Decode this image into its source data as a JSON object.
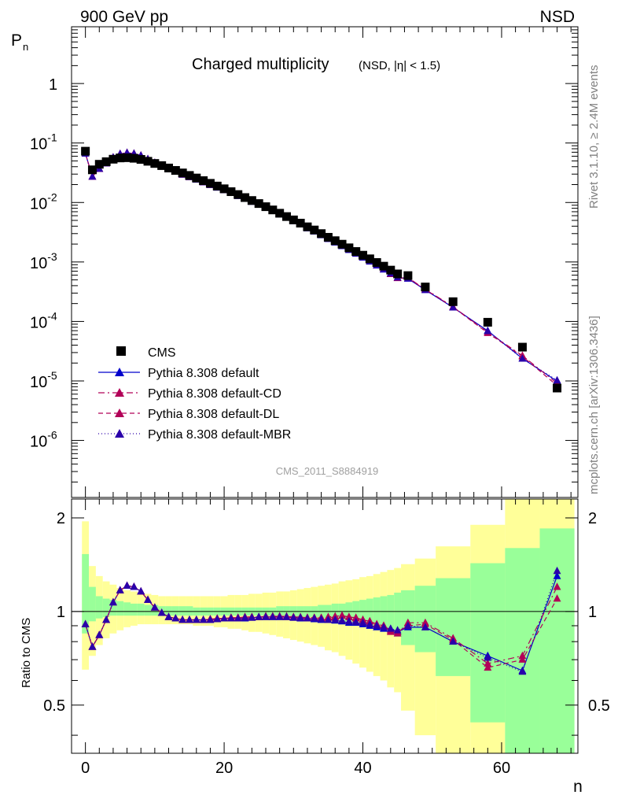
{
  "header": {
    "left": "900 GeV pp",
    "right": "NSD",
    "y_label": "P",
    "y_label_sub": "n",
    "x_label": "n",
    "ratio_label": "Ratio to CMS",
    "side_label_top": "Rivet 3.1.10, ≥ 2.4M events",
    "side_label_bottom": "mcplots.cern.ch [arXiv:1306.3436]",
    "watermark": "CMS_2011_S8884919"
  },
  "chart_data": {
    "type": "line",
    "title": "Charged multiplicity",
    "subtitle": "(NSD, |η| < 1.5)",
    "xlabel": "n",
    "ylabel": "P_n",
    "xlim": [
      -2,
      71
    ],
    "ylim": [
      1.1e-07,
      9
    ],
    "yscale": "log",
    "ratio_ylim": [
      0.35,
      2.3
    ],
    "x_ticks": [
      "0",
      "20",
      "40",
      "60"
    ],
    "y_ticks": [
      {
        "base": "10",
        "exp": "-6"
      },
      {
        "base": "10",
        "exp": "-5"
      },
      {
        "base": "10",
        "exp": "-4"
      },
      {
        "base": "10",
        "exp": "-3"
      },
      {
        "base": "10",
        "exp": "-2"
      },
      {
        "base": "10",
        "exp": "-1"
      },
      {
        "base": "1",
        "exp": ""
      }
    ],
    "ratio_y_ticks": [
      "0.5",
      "1",
      "2"
    ],
    "legend_position": "lower-left",
    "data": {
      "name": "CMS",
      "x": [
        0,
        1,
        2,
        3,
        4,
        5,
        6,
        7,
        8,
        9,
        10,
        11,
        12,
        13,
        14,
        15,
        16,
        17,
        18,
        19,
        20,
        21,
        22,
        23,
        24,
        25,
        26,
        27,
        28,
        29,
        30,
        31,
        32,
        33,
        34,
        35,
        36,
        37,
        38,
        39,
        40,
        41,
        42,
        43,
        44,
        45,
        46.5,
        49,
        53,
        58,
        63,
        68
      ],
      "y": [
        0.0728,
        0.0354,
        0.0439,
        0.0485,
        0.0534,
        0.0561,
        0.0566,
        0.0554,
        0.053,
        0.0493,
        0.0453,
        0.0417,
        0.038,
        0.0346,
        0.0314,
        0.0285,
        0.0258,
        0.0233,
        0.021,
        0.0189,
        0.017,
        0.0152,
        0.0136,
        0.0121,
        0.0108,
        0.0096,
        0.0085,
        0.0075,
        0.0066,
        0.0058,
        0.0051,
        0.0045,
        0.0039,
        0.00345,
        0.003,
        0.0026,
        0.00228,
        0.00199,
        0.00173,
        0.0015,
        0.0013,
        0.00113,
        0.00098,
        0.00085,
        0.00073,
        0.00063,
        0.00059,
        0.00038,
        0.000215,
        9.7e-05,
        3.7e-05,
        7.6e-06
      ],
      "band_x_edges": [
        -0.5,
        0.5,
        1.5,
        2.5,
        3.5,
        4.5,
        5.5,
        6.5,
        7.5,
        8.5,
        9.5,
        10.5,
        11.5,
        12.5,
        13.5,
        14.5,
        15.5,
        16.5,
        17.5,
        18.5,
        19.5,
        20.5,
        21.5,
        22.5,
        23.5,
        24.5,
        25.5,
        26.5,
        27.5,
        28.5,
        29.5,
        30.5,
        31.5,
        32.5,
        33.5,
        34.5,
        35.5,
        36.5,
        37.5,
        38.5,
        39.5,
        40.5,
        41.5,
        42.5,
        43.5,
        44.5,
        45.5,
        47.5,
        50.5,
        55.5,
        60.5,
        65.5,
        70.5
      ],
      "band_stat_lo": [
        0.85,
        0.93,
        0.95,
        0.96,
        0.97,
        0.97,
        0.97,
        0.97,
        0.97,
        0.97,
        0.97,
        0.97,
        0.97,
        0.97,
        0.97,
        0.97,
        0.97,
        0.97,
        0.97,
        0.97,
        0.97,
        0.97,
        0.97,
        0.97,
        0.97,
        0.97,
        0.97,
        0.97,
        0.97,
        0.97,
        0.96,
        0.96,
        0.96,
        0.96,
        0.95,
        0.95,
        0.94,
        0.93,
        0.93,
        0.92,
        0.91,
        0.9,
        0.89,
        0.87,
        0.85,
        0.83,
        0.78,
        0.74,
        0.62,
        0.44,
        0.3,
        0.3
      ],
      "band_stat_hi": [
        1.53,
        1.2,
        1.12,
        1.1,
        1.09,
        1.08,
        1.07,
        1.06,
        1.06,
        1.05,
        1.05,
        1.04,
        1.04,
        1.04,
        1.04,
        1.04,
        1.03,
        1.03,
        1.03,
        1.03,
        1.03,
        1.03,
        1.03,
        1.03,
        1.03,
        1.03,
        1.03,
        1.03,
        1.04,
        1.04,
        1.04,
        1.04,
        1.04,
        1.04,
        1.05,
        1.05,
        1.06,
        1.06,
        1.07,
        1.08,
        1.09,
        1.1,
        1.11,
        1.12,
        1.13,
        1.15,
        1.17,
        1.21,
        1.28,
        1.43,
        1.6,
        1.85
      ],
      "band_tot_lo": [
        0.65,
        0.72,
        0.78,
        0.82,
        0.85,
        0.87,
        0.89,
        0.9,
        0.91,
        0.91,
        0.91,
        0.91,
        0.91,
        0.91,
        0.91,
        0.91,
        0.9,
        0.9,
        0.9,
        0.89,
        0.89,
        0.88,
        0.88,
        0.87,
        0.86,
        0.86,
        0.85,
        0.84,
        0.83,
        0.82,
        0.81,
        0.8,
        0.79,
        0.78,
        0.77,
        0.75,
        0.74,
        0.72,
        0.7,
        0.68,
        0.66,
        0.64,
        0.62,
        0.6,
        0.57,
        0.55,
        0.48,
        0.4,
        0.3,
        0.3,
        0.3,
        0.3
      ],
      "band_tot_hi": [
        1.95,
        1.4,
        1.3,
        1.25,
        1.22,
        1.19,
        1.17,
        1.16,
        1.15,
        1.14,
        1.13,
        1.12,
        1.12,
        1.12,
        1.12,
        1.12,
        1.12,
        1.12,
        1.12,
        1.12,
        1.12,
        1.13,
        1.13,
        1.13,
        1.14,
        1.14,
        1.15,
        1.15,
        1.16,
        1.16,
        1.17,
        1.18,
        1.19,
        1.2,
        1.21,
        1.22,
        1.23,
        1.25,
        1.26,
        1.27,
        1.29,
        1.3,
        1.32,
        1.34,
        1.36,
        1.38,
        1.42,
        1.48,
        1.62,
        1.9,
        2.3,
        2.3
      ]
    },
    "series": [
      {
        "name": "Pythia 8.308 default",
        "color": "#0000cc",
        "dash": "",
        "ratio": [
          0.91,
          0.77,
          0.84,
          0.94,
          1.07,
          1.17,
          1.21,
          1.2,
          1.16,
          1.09,
          1.03,
          0.99,
          0.96,
          0.95,
          0.94,
          0.94,
          0.94,
          0.94,
          0.94,
          0.945,
          0.95,
          0.95,
          0.95,
          0.95,
          0.955,
          0.96,
          0.96,
          0.96,
          0.96,
          0.96,
          0.955,
          0.95,
          0.95,
          0.945,
          0.94,
          0.94,
          0.935,
          0.93,
          0.92,
          0.92,
          0.91,
          0.9,
          0.89,
          0.88,
          0.88,
          0.86,
          0.89,
          0.89,
          0.8,
          0.72,
          0.645,
          1.3
        ]
      },
      {
        "name": "Pythia 8.308 default-CD",
        "color": "#b20058",
        "dash": "8,4,2,4",
        "ratio": [
          0.91,
          0.77,
          0.84,
          0.94,
          1.07,
          1.17,
          1.21,
          1.2,
          1.16,
          1.09,
          1.03,
          0.99,
          0.96,
          0.95,
          0.94,
          0.94,
          0.94,
          0.94,
          0.945,
          0.95,
          0.95,
          0.955,
          0.955,
          0.96,
          0.96,
          0.96,
          0.965,
          0.965,
          0.965,
          0.96,
          0.96,
          0.955,
          0.955,
          0.955,
          0.95,
          0.955,
          0.96,
          0.97,
          0.96,
          0.95,
          0.94,
          0.93,
          0.91,
          0.9,
          0.86,
          0.85,
          0.92,
          0.92,
          0.82,
          0.68,
          0.72,
          1.2
        ]
      },
      {
        "name": "Pythia 8.308 default-DL",
        "color": "#b20058",
        "dash": "6,4",
        "ratio": [
          0.91,
          0.77,
          0.84,
          0.94,
          1.07,
          1.17,
          1.21,
          1.2,
          1.16,
          1.09,
          1.03,
          0.99,
          0.96,
          0.95,
          0.94,
          0.94,
          0.94,
          0.94,
          0.945,
          0.95,
          0.95,
          0.955,
          0.955,
          0.96,
          0.96,
          0.96,
          0.965,
          0.965,
          0.965,
          0.965,
          0.96,
          0.96,
          0.955,
          0.955,
          0.955,
          0.96,
          0.965,
          0.97,
          0.96,
          0.955,
          0.94,
          0.93,
          0.91,
          0.9,
          0.87,
          0.86,
          0.9,
          0.91,
          0.81,
          0.66,
          0.7,
          1.1
        ]
      },
      {
        "name": "Pythia 8.308 default-MBR",
        "color": "#2a00aa",
        "dash": "1,3",
        "ratio": [
          0.91,
          0.77,
          0.84,
          0.94,
          1.07,
          1.17,
          1.21,
          1.2,
          1.16,
          1.09,
          1.03,
          0.99,
          0.96,
          0.95,
          0.94,
          0.94,
          0.94,
          0.94,
          0.94,
          0.945,
          0.95,
          0.95,
          0.95,
          0.955,
          0.955,
          0.96,
          0.96,
          0.96,
          0.96,
          0.96,
          0.955,
          0.955,
          0.95,
          0.95,
          0.945,
          0.94,
          0.94,
          0.935,
          0.93,
          0.925,
          0.92,
          0.91,
          0.9,
          0.89,
          0.88,
          0.87,
          0.9,
          0.89,
          0.8,
          0.71,
          0.64,
          1.35
        ]
      }
    ]
  }
}
